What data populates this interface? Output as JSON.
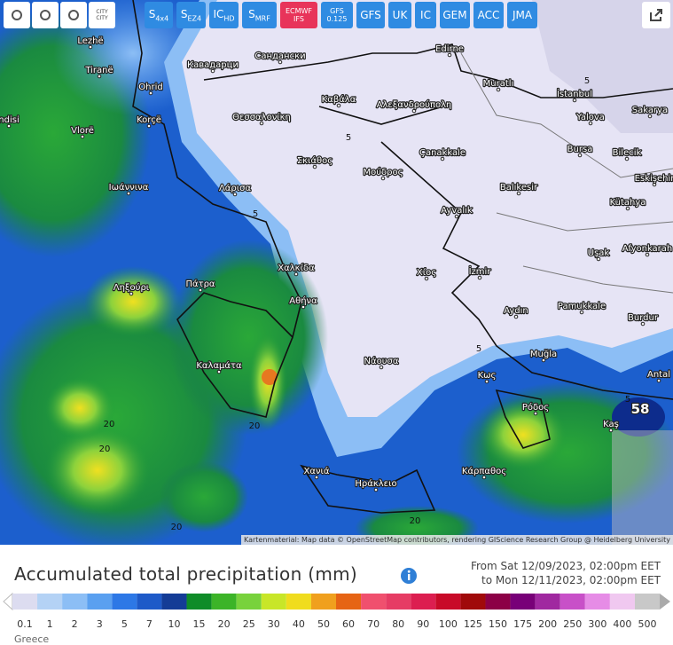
{
  "toolbar": {
    "city_button": [
      "CITY",
      "CITY"
    ],
    "models": [
      {
        "main": "S",
        "sub": "4x4"
      },
      {
        "main": "S",
        "sub": "EZ4"
      },
      {
        "main": "IC",
        "sub": "HD"
      },
      {
        "main": "S",
        "sub": "MRF"
      },
      {
        "lines": [
          "ECMWF",
          "IFS"
        ]
      },
      {
        "lines": [
          "GFS",
          "0.125"
        ]
      },
      {
        "main": "GFS"
      },
      {
        "main": "UK"
      },
      {
        "main": "IC"
      },
      {
        "main": "GEM"
      },
      {
        "main": "ACC"
      },
      {
        "main": "JMA"
      }
    ]
  },
  "map": {
    "labels": [
      "Lezhë",
      "Tiranë",
      "Ohrid",
      "Korçë",
      "Vlorë",
      "ndisi",
      "Ιωάννινα",
      "Λάρισα",
      "Θεσσαλονίκη",
      "Кавадарци",
      "Сандански",
      "Edirne",
      "Muratlı",
      "İstanbul",
      "Yalova",
      "Sakarya",
      "Καβάλα",
      "Αλεξανδρούπολη",
      "Çanakkale",
      "Bursa",
      "Bilecik",
      "Eskişehir",
      "Σκιάθος",
      "Μούδρος",
      "Balıkesir",
      "Kütahya",
      "Ayvalık",
      "Afyonkarah",
      "Uşak",
      "Χαλκίδα",
      "Χίος",
      "İzmir",
      "Ληξούρι",
      "Πάτρα",
      "Αθήνα",
      "Pamukkale",
      "Aydın",
      "Burdur",
      "Muğla",
      "Καλαμάτα",
      "Νάουσα",
      "Κως",
      "Antal",
      "Ρόδος",
      "Kaş",
      "Χανιά",
      "Κάρπαθος",
      "Ηράκλειο"
    ],
    "contour_labels": [
      "5",
      "5",
      "5",
      "5",
      "5",
      "20",
      "20",
      "20",
      "20",
      "20",
      "58"
    ],
    "attribution": "Kartenmaterial: Map data © OpenStreetMap contributors, rendering GIScience Research Group @ Heidelberg University"
  },
  "legend": {
    "title": "Accumulated total precipitation (mm)",
    "from": "From Sat 12/09/2023, 02:00pm EET",
    "to": "to Mon 12/11/2023, 02:00pm EET",
    "scale": [
      0.1,
      1,
      2,
      3,
      5,
      7,
      10,
      15,
      20,
      25,
      30,
      40,
      50,
      60,
      70,
      80,
      90,
      100,
      125,
      150,
      175,
      200,
      250,
      300,
      400,
      500
    ]
  },
  "footer": {
    "region": "Greece"
  }
}
